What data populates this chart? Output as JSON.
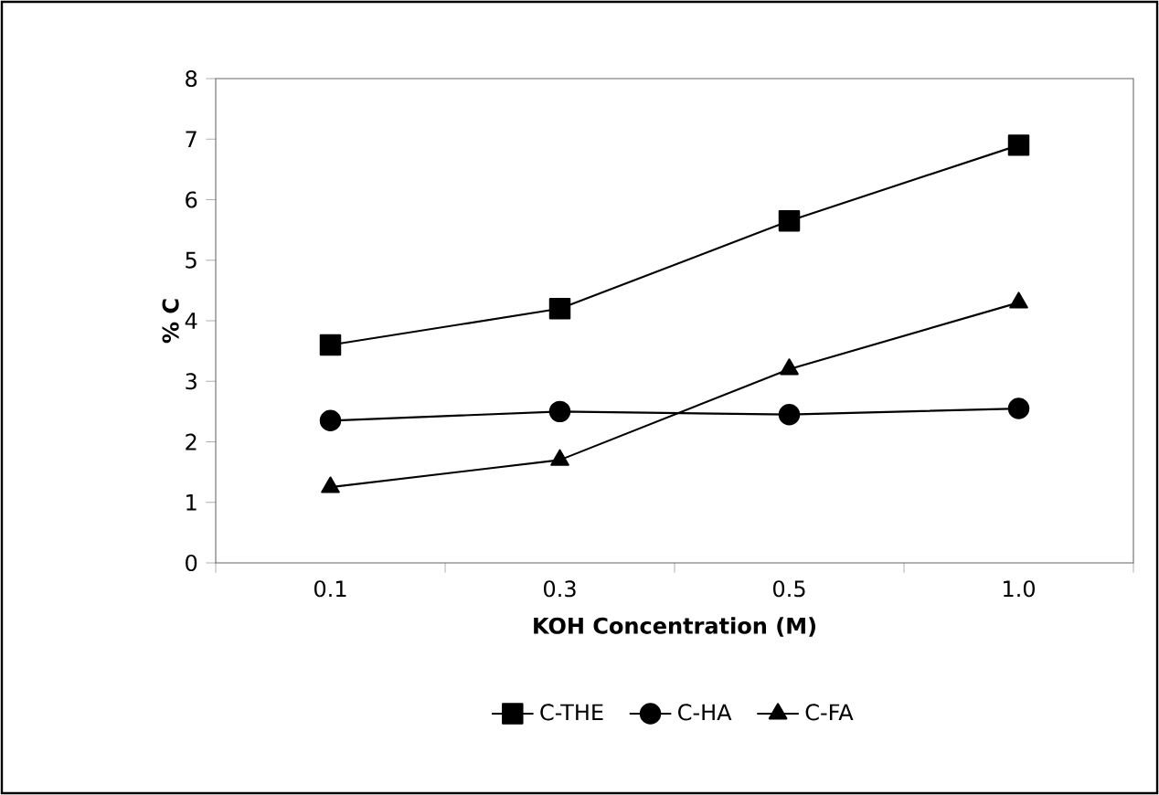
{
  "chart_data": {
    "type": "line",
    "xlabel": "KOH Concentration (M)",
    "ylabel": "% C",
    "categories": [
      "0.1",
      "0.3",
      "0.5",
      "1.0"
    ],
    "series": [
      {
        "name": "C-THE",
        "color": "#000000",
        "marker": "square",
        "values": [
          3.6,
          4.2,
          5.65,
          6.9
        ]
      },
      {
        "name": "C-HA",
        "color": "#000000",
        "marker": "circle",
        "values": [
          2.35,
          2.5,
          2.45,
          2.55
        ]
      },
      {
        "name": "C-FA",
        "color": "#000000",
        "marker": "triangle",
        "values": [
          1.25,
          1.7,
          3.2,
          4.3
        ]
      }
    ],
    "ylim": [
      0,
      8
    ],
    "yticks": [
      0,
      1,
      2,
      3,
      4,
      5,
      6,
      7,
      8
    ],
    "grid": false,
    "legend": "bottom",
    "line_style": "solid"
  }
}
